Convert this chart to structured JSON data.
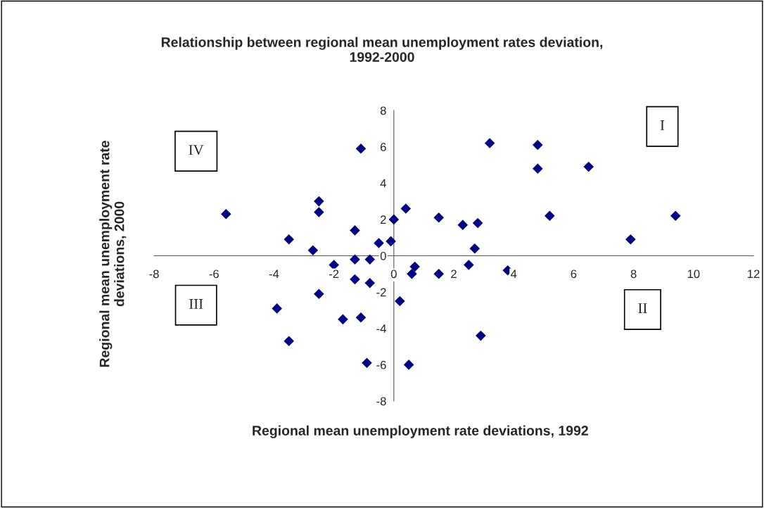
{
  "chart_data": {
    "type": "scatter",
    "title": "Relationship between regional mean unemployment rates deviation,\n1992-2000",
    "xlabel": "Regional mean unemployment rate deviations, 1992",
    "ylabel": "Regional mean unemployment rate\ndeviations, 2000",
    "x": [
      -5.6,
      -3.5,
      -3.9,
      -3.5,
      -2.7,
      -2.5,
      -2.5,
      -2.5,
      -2.0,
      -1.7,
      -1.3,
      -1.3,
      -1.3,
      -1.1,
      -1.1,
      -0.9,
      -0.8,
      -0.8,
      -0.5,
      -0.1,
      0.0,
      0.2,
      0.4,
      0.5,
      0.6,
      0.7,
      1.5,
      1.5,
      2.3,
      2.5,
      2.7,
      2.8,
      2.9,
      3.2,
      3.8,
      4.8,
      4.8,
      5.2,
      6.5,
      7.9,
      9.4
    ],
    "series": [
      {
        "color": "#000080",
        "values": [
          2.3,
          0.9,
          -2.9,
          -4.7,
          0.3,
          3.0,
          2.4,
          -2.1,
          -0.5,
          -3.5,
          1.4,
          -0.2,
          -1.3,
          5.9,
          -3.4,
          -5.9,
          -0.2,
          -1.5,
          0.7,
          0.8,
          2.0,
          -2.5,
          2.6,
          -6.0,
          -1.0,
          -0.6,
          2.1,
          -1.0,
          1.7,
          -0.5,
          0.4,
          1.8,
          -4.4,
          6.2,
          -0.8,
          6.1,
          4.8,
          2.2,
          4.9,
          0.9,
          2.2
        ]
      }
    ],
    "annotations": [
      "I",
      "II",
      "III",
      "IV"
    ],
    "xlim": [
      -8,
      12
    ],
    "ylim": [
      -8,
      8
    ],
    "xticks": [
      -8,
      -6,
      -4,
      -2,
      0,
      2,
      4,
      6,
      8,
      10,
      12
    ],
    "yticks": [
      -8,
      -6,
      -4,
      -2,
      0,
      2,
      4,
      6,
      8
    ],
    "marker": "diamond",
    "grid": false,
    "legend": false
  }
}
